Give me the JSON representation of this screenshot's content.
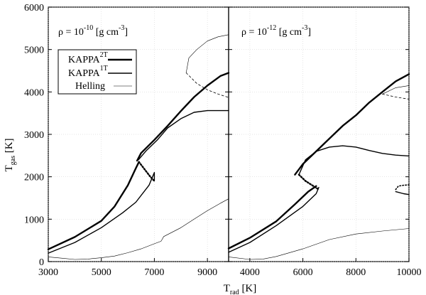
{
  "chart_data": [
    {
      "type": "line",
      "panel": "left",
      "annotation": {
        "base": "ρ = 10",
        "exp": "-10",
        "unit": " [g cm",
        "unit_exp": "-3",
        "close": "]"
      },
      "xlim": [
        3000,
        9800
      ],
      "ylim": [
        0,
        6000
      ],
      "xticks": [
        "3000",
        "5000",
        "7000",
        "9000"
      ],
      "xtick_values": [
        3000,
        5000,
        7000,
        9000
      ],
      "yticks": [
        "0",
        "1000",
        "2000",
        "3000",
        "4000",
        "5000",
        "6000"
      ],
      "ytick_values": [
        0,
        1000,
        2000,
        3000,
        4000,
        5000,
        6000
      ],
      "series": [
        {
          "name": "KAPPA 2T",
          "style": "thick",
          "points": [
            [
              3000,
              290
            ],
            [
              4000,
              580
            ],
            [
              5000,
              960
            ],
            [
              5500,
              1300
            ],
            [
              6000,
              1800
            ],
            [
              6300,
              2200
            ],
            [
              6420,
              2350
            ]
          ]
        },
        {
          "name": "KAPPA 2T",
          "style": "thick-dotted",
          "points": [
            [
              6420,
              2350
            ],
            [
              6600,
              2200
            ],
            [
              6850,
              2000
            ],
            [
              7000,
              1900
            ]
          ]
        },
        {
          "name": "KAPPA 2T",
          "style": "thick",
          "points": [
            [
              6350,
              2380
            ],
            [
              6500,
              2560
            ],
            [
              7000,
              2870
            ],
            [
              7500,
              3200
            ],
            [
              8000,
              3550
            ],
            [
              8500,
              3880
            ],
            [
              9000,
              4150
            ],
            [
              9500,
              4380
            ],
            [
              9800,
              4450
            ]
          ]
        },
        {
          "name": "KAPPA 1T",
          "style": "medium",
          "points": [
            [
              3000,
              200
            ],
            [
              4000,
              450
            ],
            [
              5000,
              800
            ],
            [
              5800,
              1150
            ],
            [
              6300,
              1400
            ],
            [
              6800,
              1800
            ],
            [
              7000,
              2100
            ],
            [
              7000,
              1900
            ]
          ]
        },
        {
          "name": "KAPPA 1T",
          "style": "medium",
          "points": [
            [
              6400,
              2400
            ],
            [
              6700,
              2620
            ],
            [
              7100,
              2860
            ],
            [
              7500,
              3150
            ],
            [
              8000,
              3370
            ],
            [
              8500,
              3520
            ],
            [
              9000,
              3560
            ],
            [
              9400,
              3560
            ],
            [
              9800,
              3560
            ]
          ]
        },
        {
          "name": "Helling",
          "style": "thin",
          "points": [
            [
              3000,
              110
            ],
            [
              3500,
              80
            ],
            [
              4000,
              50
            ],
            [
              4500,
              60
            ],
            [
              5000,
              90
            ],
            [
              5500,
              130
            ],
            [
              6000,
              210
            ],
            [
              6500,
              300
            ],
            [
              7000,
              420
            ],
            [
              7250,
              480
            ],
            [
              7300,
              530
            ],
            [
              7350,
              590
            ],
            [
              8000,
              800
            ],
            [
              8500,
              1000
            ],
            [
              9000,
              1200
            ],
            [
              9500,
              1380
            ],
            [
              9800,
              1480
            ]
          ]
        },
        {
          "name": "Helling",
          "style": "thin",
          "points": [
            [
              8200,
              4450
            ],
            [
              8300,
              4800
            ],
            [
              8600,
              5000
            ],
            [
              9000,
              5200
            ],
            [
              9400,
              5300
            ],
            [
              9800,
              5350
            ]
          ]
        },
        {
          "name": "Helling",
          "style": "thin-dashed",
          "points": [
            [
              8200,
              4450
            ],
            [
              8600,
              4200
            ],
            [
              9000,
              4050
            ],
            [
              9400,
              3950
            ],
            [
              9800,
              3870
            ]
          ]
        }
      ]
    },
    {
      "type": "line",
      "panel": "right",
      "annotation": {
        "base": "ρ = 10",
        "exp": "-12",
        "unit": " [g cm",
        "unit_exp": "-3",
        "close": "]"
      },
      "xlim": [
        3200,
        10000
      ],
      "ylim": [
        0,
        6000
      ],
      "xticks": [
        "4000",
        "6000",
        "8000",
        "10000"
      ],
      "xtick_values": [
        4000,
        6000,
        8000,
        10000
      ],
      "series": [
        {
          "name": "KAPPA 2T",
          "style": "thick",
          "points": [
            [
              3200,
              310
            ],
            [
              4000,
              560
            ],
            [
              5000,
              950
            ],
            [
              5700,
              1350
            ],
            [
              6200,
              1650
            ],
            [
              6500,
              1780
            ]
          ]
        },
        {
          "name": "KAPPA 2T",
          "style": "thick-dotted",
          "points": [
            [
              5850,
              2050
            ],
            [
              6100,
              1900
            ],
            [
              6400,
              1780
            ],
            [
              6600,
              1700
            ]
          ]
        },
        {
          "name": "KAPPA 2T",
          "style": "thick",
          "points": [
            [
              5700,
              2050
            ],
            [
              6000,
              2300
            ],
            [
              6500,
              2600
            ],
            [
              7000,
              2900
            ],
            [
              7500,
              3200
            ],
            [
              8000,
              3450
            ],
            [
              8500,
              3750
            ],
            [
              9000,
              4000
            ],
            [
              9500,
              4250
            ],
            [
              10000,
              4420
            ]
          ]
        },
        {
          "name": "KAPPA 1T",
          "style": "medium",
          "points": [
            [
              3200,
              220
            ],
            [
              4000,
              450
            ],
            [
              5000,
              850
            ],
            [
              6000,
              1300
            ],
            [
              6500,
              1600
            ],
            [
              6600,
              1750
            ]
          ]
        },
        {
          "name": "KAPPA 1T",
          "style": "medium",
          "points": [
            [
              5850,
              2050
            ],
            [
              6100,
              2400
            ],
            [
              6500,
              2600
            ],
            [
              7000,
              2700
            ],
            [
              7500,
              2730
            ],
            [
              8000,
              2700
            ],
            [
              8500,
              2620
            ],
            [
              9000,
              2550
            ],
            [
              9500,
              2510
            ],
            [
              10000,
              2490
            ]
          ]
        },
        {
          "name": "KAPPA 1T",
          "style": "medium",
          "points": [
            [
              9500,
              1650
            ],
            [
              9800,
              1600
            ],
            [
              10000,
              1580
            ]
          ]
        },
        {
          "name": "KAPPA 1T",
          "style": "medium-dotted",
          "points": [
            [
              9500,
              1700
            ],
            [
              9600,
              1780
            ],
            [
              9800,
              1800
            ],
            [
              10000,
              1810
            ]
          ]
        },
        {
          "name": "Helling",
          "style": "thin",
          "points": [
            [
              3200,
              110
            ],
            [
              4000,
              50
            ],
            [
              4500,
              60
            ],
            [
              5000,
              120
            ],
            [
              6000,
              300
            ],
            [
              7000,
              520
            ],
            [
              8000,
              650
            ],
            [
              9000,
              720
            ],
            [
              10000,
              780
            ]
          ]
        },
        {
          "name": "Helling",
          "style": "thin",
          "points": [
            [
              9000,
              3950
            ],
            [
              9500,
              4100
            ],
            [
              10000,
              4150
            ]
          ]
        },
        {
          "name": "Helling",
          "style": "thin-dashed",
          "points": [
            [
              9000,
              3950
            ],
            [
              9500,
              3880
            ],
            [
              10000,
              3830
            ]
          ]
        }
      ]
    }
  ],
  "axes": {
    "ylabel": {
      "main": "T",
      "sub": "gas",
      "unit": " [K]"
    },
    "xlabel": {
      "main": "T",
      "sub": "rad",
      "unit": " [K]"
    }
  },
  "legend": {
    "placement": "upper-left of left panel",
    "entries": [
      {
        "label": "KAPPA",
        "sup": "2T",
        "style": "thick"
      },
      {
        "label": "KAPPA",
        "sup": "1T",
        "style": "medium"
      },
      {
        "label": "Helling",
        "sup": "",
        "style": "thin"
      }
    ]
  }
}
